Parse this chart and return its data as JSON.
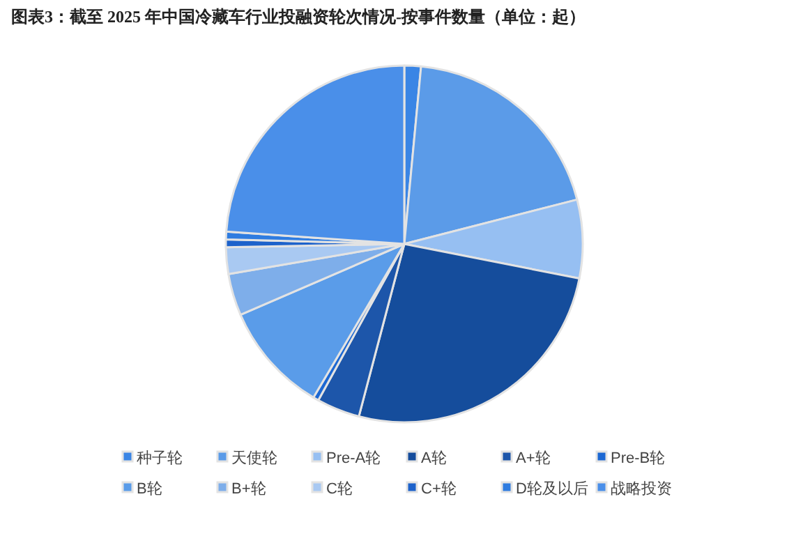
{
  "chart_data": {
    "type": "pie",
    "title": "图表3：截至 2025 年中国冷藏车行业投融资轮次情况-按事件数量（单位：起）",
    "categories": [
      "种子轮",
      "天使轮",
      "Pre-A轮",
      "A轮",
      "A+轮",
      "Pre-B轮",
      "B轮",
      "B+轮",
      "C轮",
      "C+轮",
      "D轮及以后",
      "战略投资"
    ],
    "values": [
      1.5,
      19.5,
      7.1,
      26,
      3.9,
      0.5,
      10,
      3.8,
      2.4,
      0.7,
      0.7,
      23.9
    ],
    "colors": [
      "#3a85e5",
      "#5b9be8",
      "#96bff2",
      "#154d9c",
      "#1d56aa",
      "#1c68d3",
      "#5a9ce9",
      "#7eaeea",
      "#a9c9f2",
      "#1d62cb",
      "#2f7ce0",
      "#4a8fe9"
    ],
    "legend": "bottom"
  }
}
